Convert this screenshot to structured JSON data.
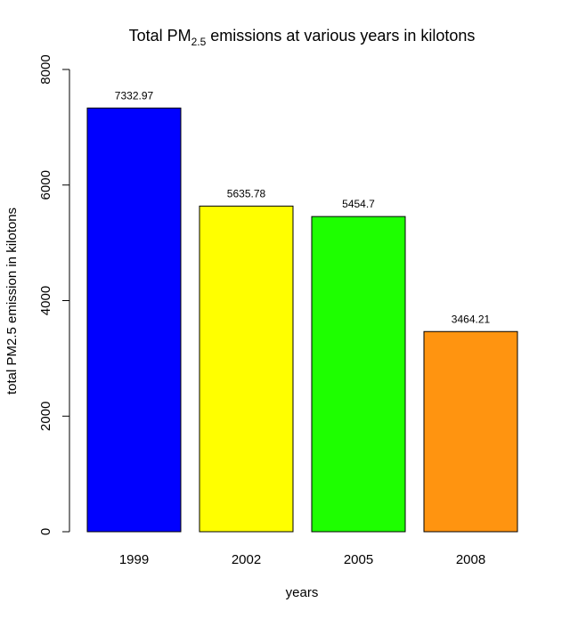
{
  "chart_data": {
    "type": "bar",
    "title_main": "Total PM",
    "title_sub": "2.5",
    "title_rest": " emissions at various years in kilotons",
    "xlabel": "years",
    "ylabel": "total PM2.5 emission in kilotons",
    "categories": [
      "1999",
      "2002",
      "2005",
      "2008"
    ],
    "values": [
      7332.97,
      5635.78,
      5454.7,
      3464.21
    ],
    "value_labels": [
      "7332.97",
      "5635.78",
      "5454.7",
      "3464.21"
    ],
    "colors": [
      "#0000ff",
      "#ffff00",
      "#1eff00",
      "#ff9410"
    ],
    "ylim": [
      0,
      8000
    ],
    "yticks": [
      0,
      2000,
      4000,
      6000,
      8000
    ],
    "ytick_labels": [
      "0",
      "2000",
      "4000",
      "6000",
      "8000"
    ],
    "grid": false,
    "legend": "none"
  }
}
